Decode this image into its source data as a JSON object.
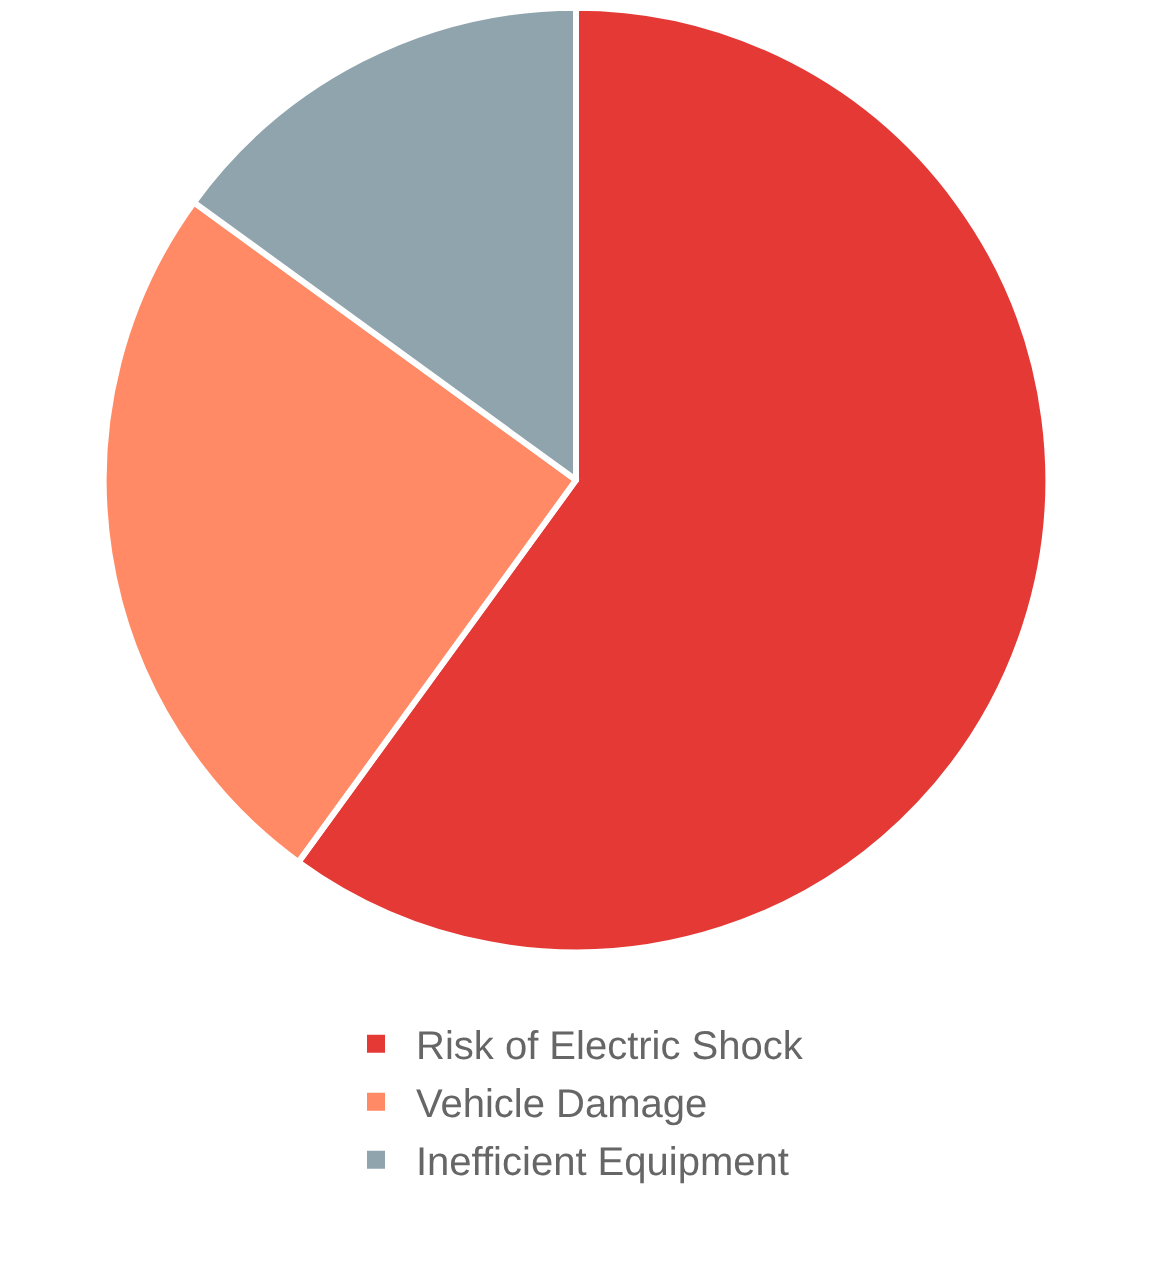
{
  "chart_data": {
    "type": "pie",
    "categories": [
      "Risk of Electric Shock",
      "Vehicle Damage",
      "Inefficient Equipment"
    ],
    "values": [
      60,
      25,
      15
    ],
    "colors": [
      "#e53935",
      "#ff8a65",
      "#90a4ae"
    ],
    "legend": "bottom"
  }
}
